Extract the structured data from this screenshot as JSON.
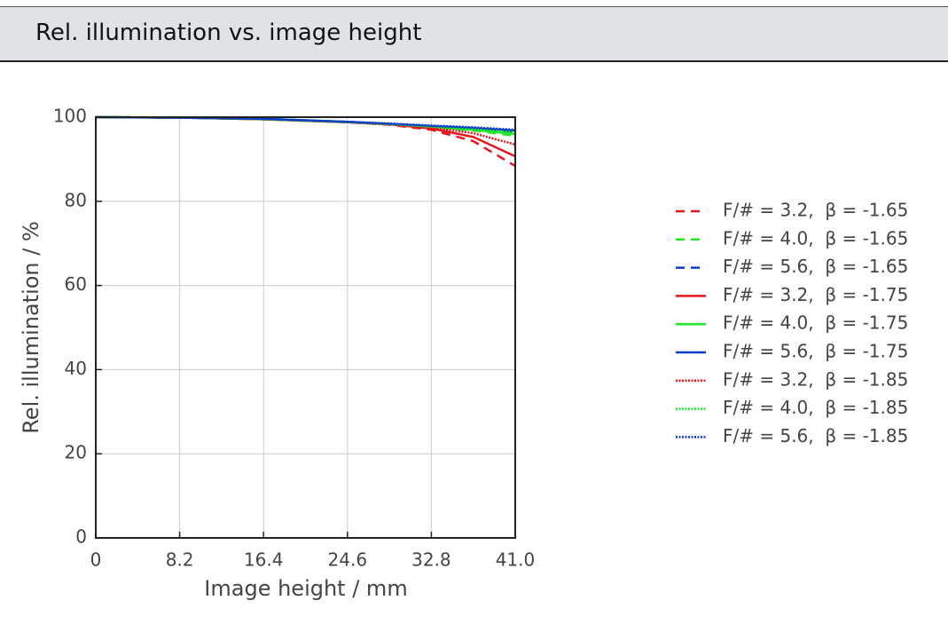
{
  "chart_data": {
    "type": "line",
    "title": "Rel. illumination vs. image height",
    "x_label": "Image height / mm",
    "y_label": "Rel. illumination / %",
    "x": [
      0,
      8.2,
      16.4,
      24.6,
      28.7,
      32.8,
      36.9,
      41
    ],
    "xlim": [
      0,
      41
    ],
    "xticks": [
      0,
      8.2,
      16.4,
      24.6,
      32.8,
      {
        "value": 41,
        "label": "41.0"
      }
    ],
    "ylim": [
      0,
      100
    ],
    "yticks": [
      0,
      20,
      40,
      60,
      80,
      100
    ],
    "grid": true,
    "legend": "right",
    "series": [
      {
        "name": "F/# = 3.2,  β = -1.65",
        "color": "#e8141c",
        "dash": "dashed",
        "values": [
          100,
          99.9,
          99.5,
          98.8,
          98.2,
          97.0,
          94.3,
          88.4
        ]
      },
      {
        "name": "F/# = 4.0,  β = -1.65",
        "color": "#1ee82a",
        "dash": "dashed",
        "values": [
          100,
          99.9,
          99.5,
          98.8,
          98.3,
          97.6,
          96.8,
          95.6
        ]
      },
      {
        "name": "F/# = 5.6,  β = -1.65",
        "color": "#0a3ccc",
        "dash": "dashed",
        "values": [
          100,
          99.9,
          99.6,
          98.9,
          98.4,
          97.8,
          97.2,
          96.4
        ]
      },
      {
        "name": "F/# = 3.2,  β = -1.75",
        "color": "#e8141c",
        "dash": "solid",
        "values": [
          100,
          99.9,
          99.5,
          98.8,
          98.3,
          97.3,
          95.3,
          90.7
        ]
      },
      {
        "name": "F/# = 4.0,  β = -1.75",
        "color": "#1ee82a",
        "dash": "solid",
        "values": [
          100,
          99.9,
          99.5,
          98.8,
          98.3,
          97.7,
          97.0,
          96.0
        ]
      },
      {
        "name": "F/# = 5.6,  β = -1.75",
        "color": "#0a3ccc",
        "dash": "solid",
        "values": [
          100,
          99.9,
          99.6,
          98.9,
          98.4,
          97.9,
          97.4,
          96.8
        ]
      },
      {
        "name": "F/# = 3.2,  β = -1.85",
        "color": "#e8141c",
        "dash": "dotted",
        "values": [
          100,
          99.9,
          99.5,
          98.8,
          98.3,
          97.5,
          96.2,
          93.5
        ]
      },
      {
        "name": "F/# = 4.0,  β = -1.85",
        "color": "#1ee82a",
        "dash": "dotted",
        "values": [
          100,
          99.9,
          99.6,
          98.9,
          98.4,
          97.8,
          97.2,
          96.4
        ]
      },
      {
        "name": "F/# = 5.6,  β = -1.85",
        "color": "#0a3ccc",
        "dash": "dotted",
        "values": [
          100,
          99.9,
          99.6,
          98.9,
          98.5,
          98.0,
          97.6,
          97.0
        ]
      }
    ]
  }
}
